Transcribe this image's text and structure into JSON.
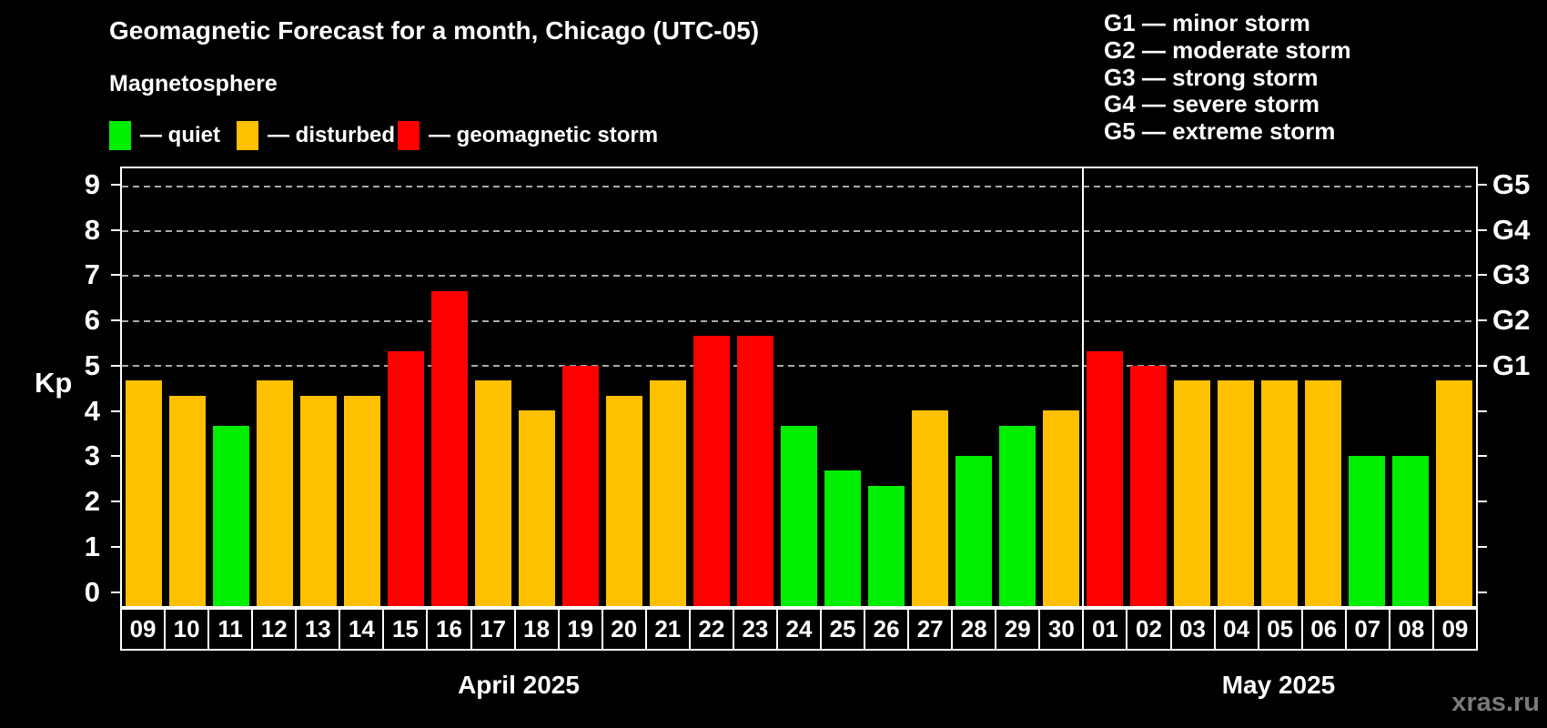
{
  "title": "Geomagnetic Forecast for a month, Chicago (UTC-05)",
  "subtitle": "Magnetosphere",
  "legend": {
    "quiet_label": "— quiet",
    "disturbed_label": "— disturbed",
    "storm_label": "— geomagnetic storm"
  },
  "g_legend": {
    "items": [
      "G1 — minor storm",
      "G2 — moderate storm",
      "G3 — strong storm",
      "G4 — severe storm",
      "G5 — extreme storm"
    ]
  },
  "y_axis": {
    "label": "Kp",
    "ticks": [
      0,
      1,
      2,
      3,
      4,
      5,
      6,
      7,
      8,
      9
    ],
    "min": -0.35,
    "max": 9.4
  },
  "right_axis": {
    "tick_kps": [
      0,
      1,
      2,
      3,
      4,
      5,
      6,
      7,
      8,
      9
    ],
    "labels": [
      {
        "kp": 5,
        "text": "G1"
      },
      {
        "kp": 6,
        "text": "G2"
      },
      {
        "kp": 7,
        "text": "G3"
      },
      {
        "kp": 8,
        "text": "G4"
      },
      {
        "kp": 9,
        "text": "G5"
      }
    ]
  },
  "months": [
    {
      "label": "April 2025",
      "day_count": 22
    },
    {
      "label": "May 2025",
      "day_count": 9
    }
  ],
  "watermark": "xras.ru",
  "colors": {
    "quiet": "#00ee00",
    "disturbed": "#ffc000",
    "storm": "#ff0000",
    "background": "#000000",
    "grid": "#aaaaaa",
    "axis": "#ffffff",
    "watermark": "#7a7a7a"
  },
  "chart_data": {
    "type": "bar",
    "title": "Geomagnetic Forecast for a month, Chicago (UTC-05)",
    "ylabel": "Kp",
    "ylim": [
      -0.35,
      9.4
    ],
    "gridline_kps": [
      5,
      6,
      7,
      8,
      9
    ],
    "legend_position": "top-left",
    "categories": [
      "09",
      "10",
      "11",
      "12",
      "13",
      "14",
      "15",
      "16",
      "17",
      "18",
      "19",
      "20",
      "21",
      "22",
      "23",
      "24",
      "25",
      "26",
      "27",
      "28",
      "29",
      "30",
      "01",
      "02",
      "03",
      "04",
      "05",
      "06",
      "07",
      "08",
      "09"
    ],
    "values": [
      4.67,
      4.33,
      3.67,
      4.67,
      4.33,
      4.33,
      5.33,
      6.67,
      4.67,
      4.0,
      5.0,
      4.33,
      4.67,
      5.67,
      5.67,
      3.67,
      2.67,
      2.33,
      4.0,
      3.0,
      3.67,
      4.0,
      5.33,
      5.0,
      4.67,
      4.67,
      4.67,
      4.67,
      3.0,
      3.0,
      4.67
    ],
    "states": [
      "disturbed",
      "disturbed",
      "quiet",
      "disturbed",
      "disturbed",
      "disturbed",
      "storm",
      "storm",
      "disturbed",
      "disturbed",
      "storm",
      "disturbed",
      "disturbed",
      "storm",
      "storm",
      "quiet",
      "quiet",
      "quiet",
      "disturbed",
      "quiet",
      "quiet",
      "disturbed",
      "storm",
      "storm",
      "disturbed",
      "disturbed",
      "disturbed",
      "disturbed",
      "quiet",
      "quiet",
      "disturbed"
    ]
  }
}
